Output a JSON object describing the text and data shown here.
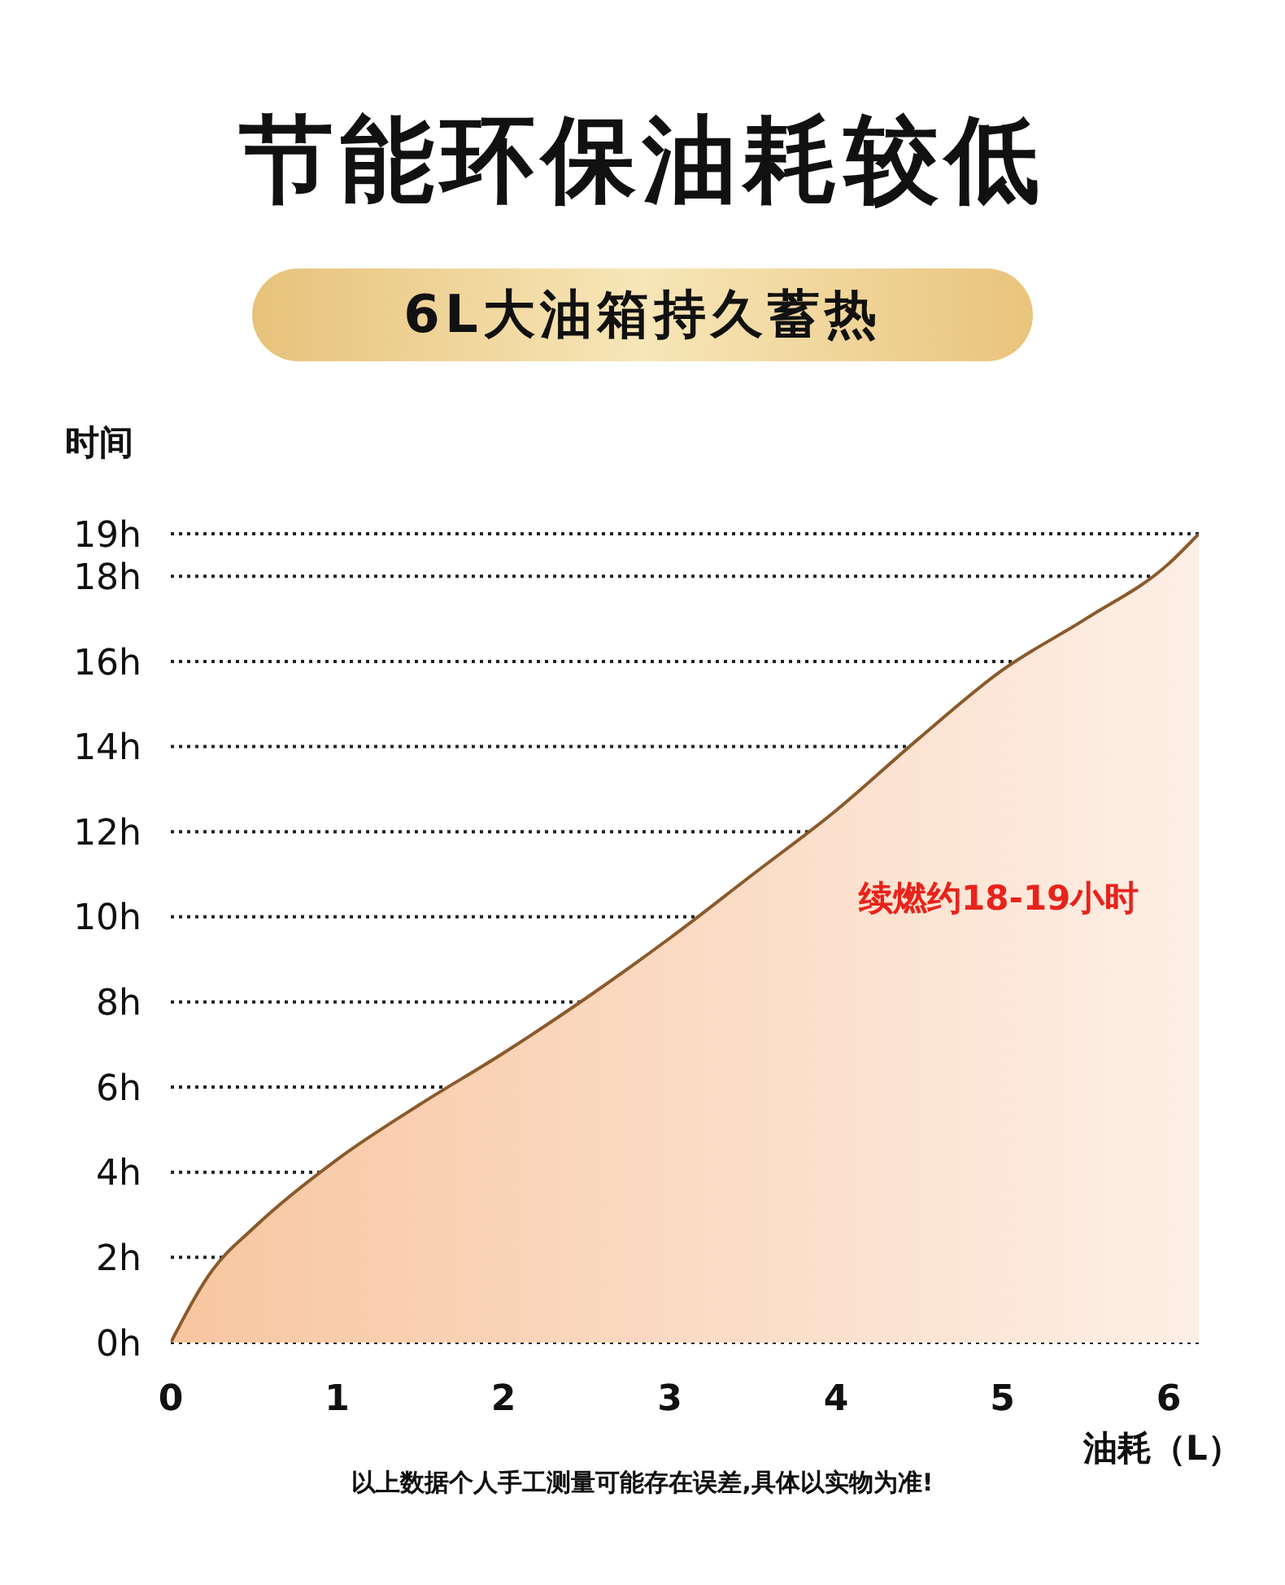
{
  "chart_data": {
    "type": "area",
    "title": "节能环保油耗较低",
    "subtitle": "6L大油箱持久蓄热",
    "ylabel": "时间",
    "xlabel": "油耗（L）",
    "x": [
      0,
      0.25,
      0.5,
      1,
      1.5,
      2,
      2.5,
      3,
      3.5,
      4,
      4.5,
      5,
      5.5,
      6,
      6.18
    ],
    "series": [
      {
        "color": "#8b5a2b",
        "values": [
          0,
          1.7,
          2.7,
          4.3,
          5.6,
          6.8,
          8.1,
          9.5,
          11.0,
          12.5,
          14.2,
          15.8,
          17.0,
          18.3,
          19.0
        ]
      }
    ],
    "xlim": [
      0,
      6.18
    ],
    "xticks": [
      0,
      1,
      2,
      3,
      4,
      5,
      6
    ],
    "ylim": [
      0,
      19
    ],
    "yticks": [
      {
        "value": 0,
        "label": "0h"
      },
      {
        "value": 2,
        "label": "2h"
      },
      {
        "value": 4,
        "label": "4h"
      },
      {
        "value": 6,
        "label": "6h"
      },
      {
        "value": 8,
        "label": "8h"
      },
      {
        "value": 10,
        "label": "10h"
      },
      {
        "value": 12,
        "label": "12h"
      },
      {
        "value": 14,
        "label": "14h"
      },
      {
        "value": 16,
        "label": "16h"
      },
      {
        "value": 18,
        "label": "18h"
      },
      {
        "value": 19,
        "label": "19h"
      }
    ],
    "grid": "y",
    "legend": false,
    "marker": "none",
    "line_style": "solid",
    "annotations": [
      "续燃约18-19小时",
      "以上数据个人手工测量可能存在误差,具体以实物为准!"
    ]
  }
}
